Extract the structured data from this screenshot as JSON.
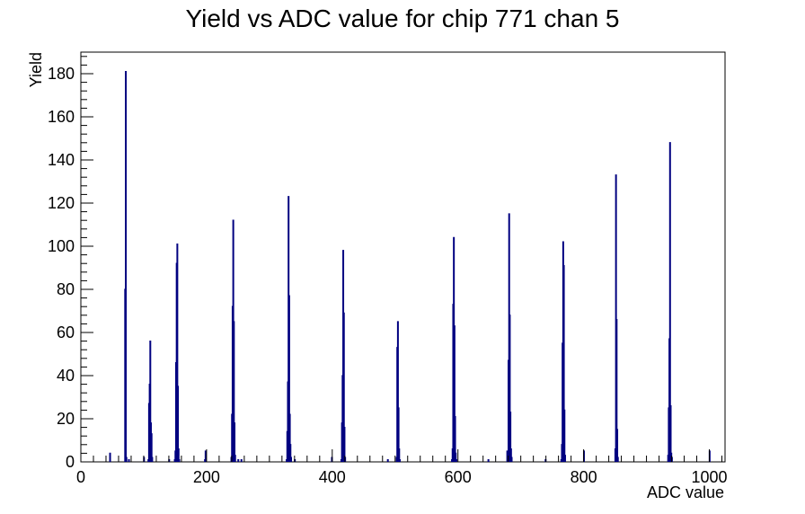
{
  "chart_data": {
    "type": "bar",
    "title": "Yield vs ADC value for chip 771 chan 5",
    "xlabel": "ADC value",
    "ylabel": "Yield",
    "xlim": [
      0,
      1025
    ],
    "ylim": [
      0,
      190
    ],
    "x_major_ticks": [
      0,
      200,
      400,
      600,
      800,
      1000
    ],
    "y_major_ticks": [
      0,
      20,
      40,
      60,
      80,
      100,
      120,
      140,
      160,
      180
    ],
    "x_tick_labels": [
      "0",
      "200",
      "400",
      "600",
      "800",
      "1000"
    ],
    "y_tick_labels": [
      "0",
      "20",
      "40",
      "60",
      "80",
      "100",
      "120",
      "140",
      "160",
      "180"
    ],
    "bin_width": 1,
    "grid": false,
    "legend": "none",
    "line_color": "#000080",
    "bins": [
      {
        "x": 46,
        "y": 4
      },
      {
        "x": 70,
        "y": 80
      },
      {
        "x": 71,
        "y": 181
      },
      {
        "x": 72,
        "y": 2
      },
      {
        "x": 76,
        "y": 1
      },
      {
        "x": 100,
        "y": 2
      },
      {
        "x": 107,
        "y": 1
      },
      {
        "x": 108,
        "y": 27
      },
      {
        "x": 109,
        "y": 36
      },
      {
        "x": 110,
        "y": 56
      },
      {
        "x": 111,
        "y": 18
      },
      {
        "x": 112,
        "y": 13
      },
      {
        "x": 113,
        "y": 2
      },
      {
        "x": 140,
        "y": 1
      },
      {
        "x": 149,
        "y": 1
      },
      {
        "x": 150,
        "y": 5
      },
      {
        "x": 151,
        "y": 46
      },
      {
        "x": 152,
        "y": 92
      },
      {
        "x": 153,
        "y": 101
      },
      {
        "x": 154,
        "y": 35
      },
      {
        "x": 155,
        "y": 6
      },
      {
        "x": 156,
        "y": 1
      },
      {
        "x": 197,
        "y": 1
      },
      {
        "x": 198,
        "y": 5
      },
      {
        "x": 239,
        "y": 2
      },
      {
        "x": 240,
        "y": 22
      },
      {
        "x": 241,
        "y": 72
      },
      {
        "x": 242,
        "y": 112
      },
      {
        "x": 243,
        "y": 65
      },
      {
        "x": 244,
        "y": 18
      },
      {
        "x": 245,
        "y": 3
      },
      {
        "x": 250,
        "y": 1
      },
      {
        "x": 255,
        "y": 1
      },
      {
        "x": 327,
        "y": 1
      },
      {
        "x": 328,
        "y": 14
      },
      {
        "x": 329,
        "y": 37
      },
      {
        "x": 330,
        "y": 123
      },
      {
        "x": 331,
        "y": 77
      },
      {
        "x": 332,
        "y": 22
      },
      {
        "x": 333,
        "y": 8
      },
      {
        "x": 334,
        "y": 2
      },
      {
        "x": 340,
        "y": 1
      },
      {
        "x": 414,
        "y": 1
      },
      {
        "x": 415,
        "y": 18
      },
      {
        "x": 416,
        "y": 40
      },
      {
        "x": 417,
        "y": 98
      },
      {
        "x": 418,
        "y": 69
      },
      {
        "x": 419,
        "y": 16
      },
      {
        "x": 420,
        "y": 2
      },
      {
        "x": 399,
        "y": 2
      },
      {
        "x": 488,
        "y": 1
      },
      {
        "x": 502,
        "y": 2
      },
      {
        "x": 503,
        "y": 53
      },
      {
        "x": 504,
        "y": 65
      },
      {
        "x": 505,
        "y": 25
      },
      {
        "x": 506,
        "y": 6
      },
      {
        "x": 507,
        "y": 1
      },
      {
        "x": 590,
        "y": 1
      },
      {
        "x": 591,
        "y": 6
      },
      {
        "x": 592,
        "y": 73
      },
      {
        "x": 593,
        "y": 104
      },
      {
        "x": 594,
        "y": 63
      },
      {
        "x": 595,
        "y": 21
      },
      {
        "x": 596,
        "y": 4
      },
      {
        "x": 597,
        "y": 1
      },
      {
        "x": 648,
        "y": 1
      },
      {
        "x": 678,
        "y": 5
      },
      {
        "x": 679,
        "y": 4
      },
      {
        "x": 680,
        "y": 47
      },
      {
        "x": 681,
        "y": 115
      },
      {
        "x": 682,
        "y": 68
      },
      {
        "x": 683,
        "y": 23
      },
      {
        "x": 684,
        "y": 6
      },
      {
        "x": 685,
        "y": 2
      },
      {
        "x": 739,
        "y": 1
      },
      {
        "x": 764,
        "y": 1
      },
      {
        "x": 765,
        "y": 8
      },
      {
        "x": 766,
        "y": 55
      },
      {
        "x": 767,
        "y": 102
      },
      {
        "x": 768,
        "y": 91
      },
      {
        "x": 769,
        "y": 24
      },
      {
        "x": 770,
        "y": 3
      },
      {
        "x": 800,
        "y": 5
      },
      {
        "x": 850,
        "y": 6
      },
      {
        "x": 851,
        "y": 133
      },
      {
        "x": 852,
        "y": 66
      },
      {
        "x": 853,
        "y": 15
      },
      {
        "x": 854,
        "y": 2
      },
      {
        "x": 934,
        "y": 3
      },
      {
        "x": 935,
        "y": 25
      },
      {
        "x": 936,
        "y": 57
      },
      {
        "x": 937,
        "y": 148
      },
      {
        "x": 938,
        "y": 26
      },
      {
        "x": 939,
        "y": 4
      },
      {
        "x": 940,
        "y": 2
      },
      {
        "x": 1000,
        "y": 5
      }
    ]
  }
}
